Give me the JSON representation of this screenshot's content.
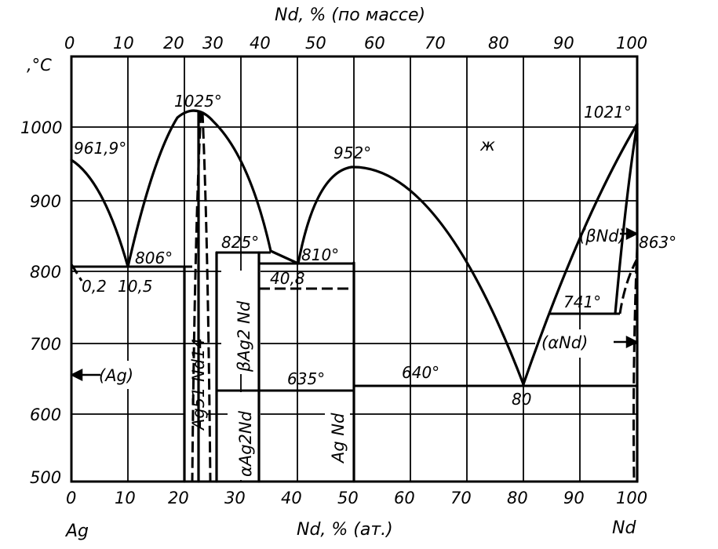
{
  "title_top": "Nd, % (по массе)",
  "axis_bottom_title": "Nd, % (ат.)",
  "unit_y": ",°C",
  "element_left": "Ag",
  "element_right": "Nd",
  "top_ticks": [
    "0",
    "10",
    "20",
    "30",
    "40",
    "50",
    "60",
    "70",
    "80",
    "90",
    "100"
  ],
  "bottom_ticks": [
    "0",
    "10",
    "20",
    "30",
    "40",
    "50",
    "60",
    "70",
    "80",
    "90",
    "100"
  ],
  "y_ticks": [
    "500",
    "600",
    "700",
    "800",
    "900",
    "1000"
  ],
  "temps": {
    "ag_melt": "961,9°",
    "t1025": "1025°",
    "t806": "806°",
    "t825": "825°",
    "t810": "810°",
    "t952": "952°",
    "t1021": "1021°",
    "t863": "863°",
    "t741": "741°",
    "t635": "635°",
    "t640": "640°"
  },
  "compositions": {
    "c02": "0,2",
    "c105": "10,5",
    "c408": "40,8",
    "c80": "80"
  },
  "phases": {
    "liquid": "ж",
    "ag_solid": "(Ag)",
    "alpha_nd": "(αNd)",
    "beta_nd": "(βNd)",
    "ag51nd14": "Ag51 Nd14",
    "beta_ag2nd": "βAg2 Nd",
    "alpha_ag2nd": "αAg2Nd",
    "agnd": "Ag Nd"
  },
  "chart_data": {
    "type": "phase_diagram",
    "system": "Ag–Nd",
    "x_unit": "Nd, % (ат.)",
    "x_top_unit": "Nd, % (по массе)",
    "y_unit": "°C",
    "xlim": [
      0,
      100
    ],
    "ylim": [
      500,
      1100
    ],
    "invariant_points": [
      {
        "x": 0,
        "y": 961.9
      },
      {
        "x": 10.5,
        "y": 806
      },
      {
        "x": 23,
        "y": 1025
      },
      {
        "x": 35,
        "y": 825
      },
      {
        "x": 40.8,
        "y": 810
      },
      {
        "x": 50,
        "y": 952
      },
      {
        "x": 80,
        "y": 640
      },
      {
        "x": 100,
        "y": 1021
      },
      {
        "x": 100,
        "y": 863
      }
    ],
    "horizontal_lines": [
      {
        "y": 806,
        "x": [
          0,
          21
        ]
      },
      {
        "y": 825,
        "x": [
          26,
          37
        ]
      },
      {
        "y": 810,
        "x": [
          34,
          50
        ]
      },
      {
        "y": 741,
        "x": [
          84,
          96
        ]
      },
      {
        "y": 635,
        "x": [
          26,
          50
        ]
      },
      {
        "y": 640,
        "x": [
          50,
          100
        ]
      }
    ]
  }
}
